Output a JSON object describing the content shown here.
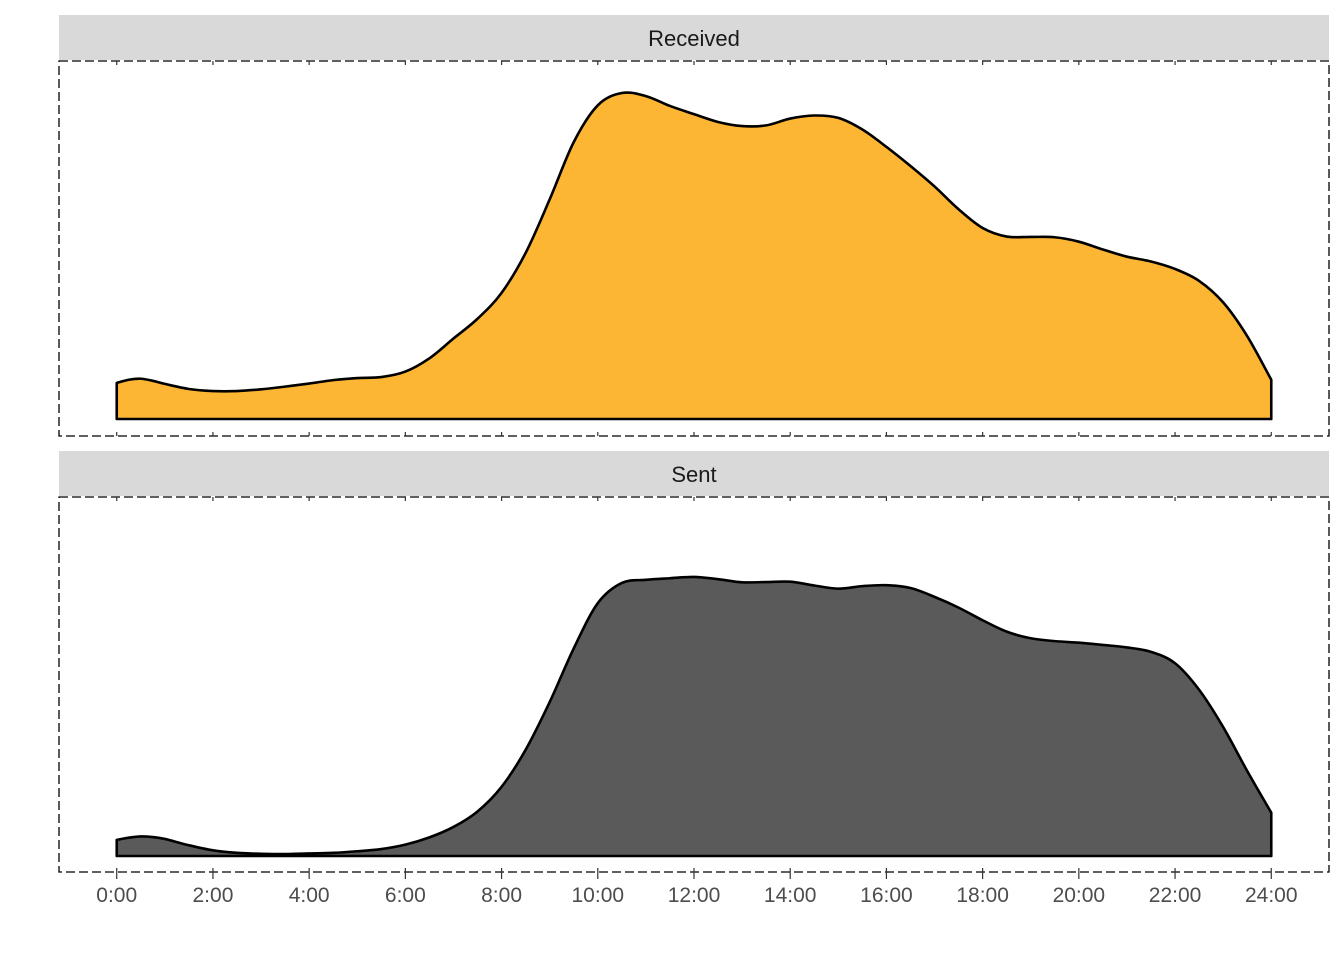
{
  "chart_data": {
    "type": "area",
    "xlabel": "",
    "ylabel": "",
    "xlim": [
      -1.2,
      25.2
    ],
    "x_ticks": [
      "0:00",
      "2:00",
      "4:00",
      "6:00",
      "8:00",
      "10:00",
      "12:00",
      "14:00",
      "16:00",
      "18:00",
      "20:00",
      "22:00",
      "24:00"
    ],
    "x_tick_values": [
      0,
      2,
      4,
      6,
      8,
      10,
      12,
      14,
      16,
      18,
      20,
      22,
      24
    ],
    "grid": false,
    "facets": [
      {
        "label": "Received",
        "color": "#FDB633",
        "y_max": 1.0,
        "x": [
          0,
          0.25,
          0.5,
          0.75,
          1,
          1.5,
          2,
          2.5,
          3,
          3.5,
          4,
          4.5,
          5,
          5.5,
          6,
          6.5,
          7,
          7.5,
          8,
          8.5,
          9,
          9.5,
          10,
          10.5,
          11,
          11.5,
          12,
          12.5,
          13,
          13.5,
          14,
          14.5,
          15,
          15.5,
          16,
          16.5,
          17,
          17.5,
          18,
          18.5,
          19,
          19.5,
          20,
          20.5,
          21,
          21.5,
          22,
          22.5,
          23,
          23.5,
          24
        ],
        "y": [
          0.106,
          0.115,
          0.118,
          0.112,
          0.103,
          0.088,
          0.082,
          0.082,
          0.087,
          0.095,
          0.104,
          0.114,
          0.12,
          0.123,
          0.139,
          0.178,
          0.236,
          0.294,
          0.37,
          0.487,
          0.644,
          0.812,
          0.92,
          0.956,
          0.947,
          0.918,
          0.894,
          0.871,
          0.859,
          0.861,
          0.881,
          0.89,
          0.883,
          0.849,
          0.798,
          0.742,
          0.682,
          0.615,
          0.56,
          0.535,
          0.534,
          0.533,
          0.52,
          0.497,
          0.476,
          0.462,
          0.44,
          0.405,
          0.342,
          0.243,
          0.115
        ]
      },
      {
        "label": "Sent",
        "color": "#5A5A5A",
        "y_max": 1.0,
        "x": [
          0,
          0.25,
          0.5,
          0.75,
          1,
          1.5,
          2,
          2.5,
          3,
          3.5,
          4,
          4.5,
          5,
          5.5,
          6,
          6.5,
          7,
          7.5,
          8,
          8.5,
          9,
          9.5,
          10,
          10.5,
          11,
          11.5,
          12,
          12.5,
          13,
          13.5,
          14,
          14.5,
          15,
          15.5,
          16,
          16.5,
          17,
          17.5,
          18,
          18.5,
          19,
          19.5,
          20,
          20.5,
          21,
          21.5,
          22,
          22.5,
          23,
          23.5,
          24
        ],
        "y": [
          0.051,
          0.058,
          0.062,
          0.06,
          0.054,
          0.034,
          0.018,
          0.01,
          0.007,
          0.006,
          0.008,
          0.01,
          0.015,
          0.022,
          0.036,
          0.059,
          0.092,
          0.141,
          0.219,
          0.336,
          0.487,
          0.657,
          0.8,
          0.864,
          0.874,
          0.879,
          0.883,
          0.876,
          0.866,
          0.867,
          0.868,
          0.856,
          0.846,
          0.854,
          0.857,
          0.848,
          0.82,
          0.786,
          0.746,
          0.71,
          0.689,
          0.68,
          0.675,
          0.668,
          0.66,
          0.646,
          0.61,
          0.526,
          0.408,
          0.269,
          0.137
        ]
      }
    ]
  }
}
